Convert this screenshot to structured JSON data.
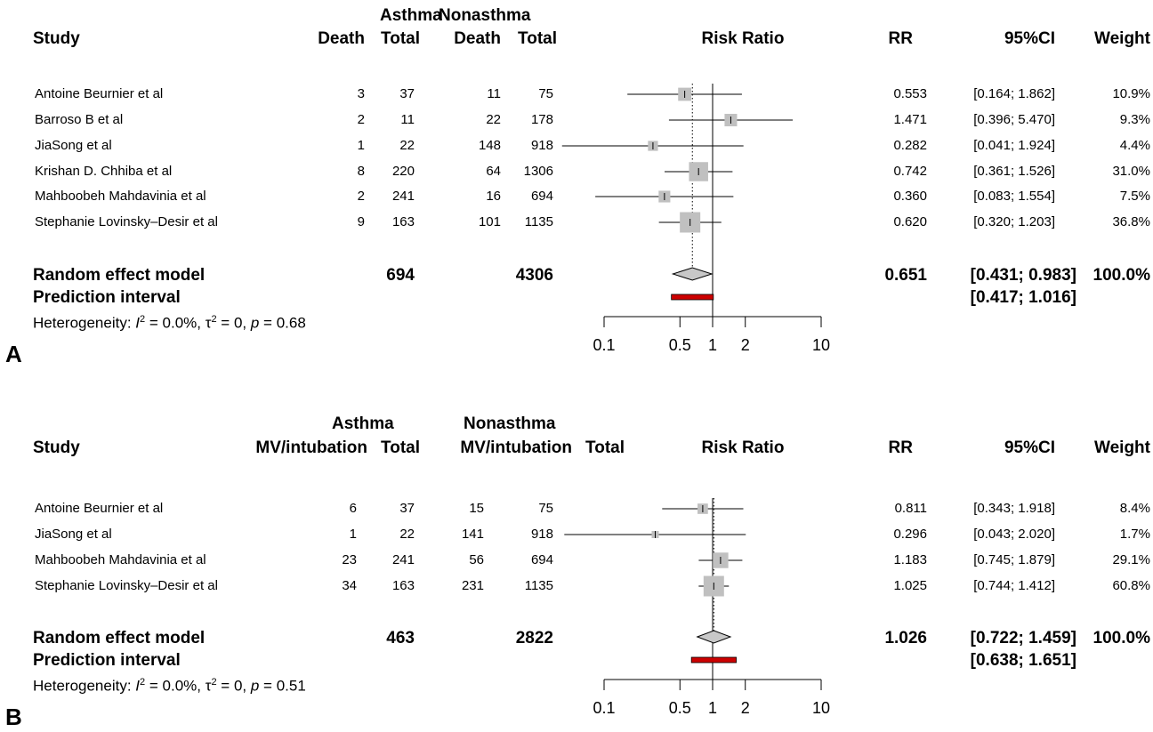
{
  "chart_data": [
    {
      "type": "forest",
      "panel_label": "A",
      "headers": {
        "group1": "Asthma",
        "group2": "Nonasthma",
        "study": "Study",
        "event": "Death",
        "total": "Total",
        "plot": "Risk Ratio",
        "rr": "RR",
        "ci": "95%CI",
        "weight": "Weight"
      },
      "studies": [
        {
          "study": "Antoine Beurnier et al",
          "e1": "3",
          "n1": "37",
          "e2": "11",
          "n2": "75",
          "rr": 0.553,
          "lo": 0.164,
          "hi": 1.862,
          "rr_text": "0.553",
          "ci_text": "[0.164; 1.862]",
          "weight": 10.9,
          "weight_text": "10.9%"
        },
        {
          "study": "Barroso B et al",
          "e1": "2",
          "n1": "11",
          "e2": "22",
          "n2": "178",
          "rr": 1.471,
          "lo": 0.396,
          "hi": 5.47,
          "rr_text": "1.471",
          "ci_text": "[0.396; 5.470]",
          "weight": 9.3,
          "weight_text": "9.3%"
        },
        {
          "study": "JiaSong et al",
          "e1": "1",
          "n1": "22",
          "e2": "148",
          "n2": "918",
          "rr": 0.282,
          "lo": 0.041,
          "hi": 1.924,
          "rr_text": "0.282",
          "ci_text": "[0.041; 1.924]",
          "weight": 4.4,
          "weight_text": "4.4%"
        },
        {
          "study": "Krishan D. Chhiba et al",
          "e1": "8",
          "n1": "220",
          "e2": "64",
          "n2": "1306",
          "rr": 0.742,
          "lo": 0.361,
          "hi": 1.526,
          "rr_text": "0.742",
          "ci_text": "[0.361; 1.526]",
          "weight": 31.0,
          "weight_text": "31.0%"
        },
        {
          "study": "Mahboobeh Mahdavinia et al",
          "e1": "2",
          "n1": "241",
          "e2": "16",
          "n2": "694",
          "rr": 0.36,
          "lo": 0.083,
          "hi": 1.554,
          "rr_text": "0.360",
          "ci_text": "[0.083; 1.554]",
          "weight": 7.5,
          "weight_text": "7.5%"
        },
        {
          "study": "Stephanie Lovinsky–Desir et al",
          "e1": "9",
          "n1": "163",
          "e2": "101",
          "n2": "1135",
          "rr": 0.62,
          "lo": 0.32,
          "hi": 1.203,
          "rr_text": "0.620",
          "ci_text": "[0.320; 1.203]",
          "weight": 36.8,
          "weight_text": "36.8%"
        }
      ],
      "summary": {
        "label": "Random effect model",
        "n1": "694",
        "n2": "4306",
        "rr": 0.651,
        "lo": 0.431,
        "hi": 0.983,
        "rr_text": "0.651",
        "ci_text": "[0.431; 0.983]",
        "weight_text": "100.0%"
      },
      "prediction": {
        "label": "Prediction interval",
        "lo": 0.417,
        "hi": 1.016,
        "ci_text": "[0.417; 1.016]"
      },
      "heterogeneity": {
        "prefix": "Heterogeneity: ",
        "i2_symbol": "I",
        "i2_sup": "2",
        "i2_value": " = 0.0%, ",
        "tau_symbol": "τ",
        "tau_sup": "2",
        "tau_value": " = 0, ",
        "p_symbol": "p",
        "p_value": " = 0.68"
      },
      "x_axis": {
        "scale": "log",
        "ticks": [
          0.1,
          0.5,
          1,
          2,
          10
        ],
        "tick_labels": [
          "0.1",
          "0.5",
          "1",
          "2",
          "10"
        ]
      },
      "colors": {
        "square": "#c0c0c0",
        "prediction": "#cc0000"
      }
    },
    {
      "type": "forest",
      "panel_label": "B",
      "headers": {
        "group1": "Asthma",
        "group2": "Nonasthma",
        "study": "Study",
        "event": "MV/intubation",
        "total": "Total",
        "plot": "Risk Ratio",
        "rr": "RR",
        "ci": "95%CI",
        "weight": "Weight"
      },
      "studies": [
        {
          "study": "Antoine Beurnier et al",
          "e1": "6",
          "n1": "37",
          "e2": "15",
          "n2": "75",
          "rr": 0.811,
          "lo": 0.343,
          "hi": 1.918,
          "rr_text": "0.811",
          "ci_text": "[0.343; 1.918]",
          "weight": 8.4,
          "weight_text": "8.4%"
        },
        {
          "study": "JiaSong et al",
          "e1": "1",
          "n1": "22",
          "e2": "141",
          "n2": "918",
          "rr": 0.296,
          "lo": 0.043,
          "hi": 2.02,
          "rr_text": "0.296",
          "ci_text": "[0.043; 2.020]",
          "weight": 1.7,
          "weight_text": "1.7%"
        },
        {
          "study": "Mahboobeh Mahdavinia et al",
          "e1": "23",
          "n1": "241",
          "e2": "56",
          "n2": "694",
          "rr": 1.183,
          "lo": 0.745,
          "hi": 1.879,
          "rr_text": "1.183",
          "ci_text": "[0.745; 1.879]",
          "weight": 29.1,
          "weight_text": "29.1%"
        },
        {
          "study": "Stephanie Lovinsky–Desir et al",
          "e1": "34",
          "n1": "163",
          "e2": "231",
          "n2": "1135",
          "rr": 1.025,
          "lo": 0.744,
          "hi": 1.412,
          "rr_text": "1.025",
          "ci_text": "[0.744; 1.412]",
          "weight": 60.8,
          "weight_text": "60.8%"
        }
      ],
      "summary": {
        "label": "Random effect model",
        "n1": "463",
        "n2": "2822",
        "rr": 1.026,
        "lo": 0.722,
        "hi": 1.459,
        "rr_text": "1.026",
        "ci_text": "[0.722; 1.459]",
        "weight_text": "100.0%"
      },
      "prediction": {
        "label": "Prediction interval",
        "lo": 0.638,
        "hi": 1.651,
        "ci_text": "[0.638; 1.651]"
      },
      "heterogeneity": {
        "prefix": "Heterogeneity: ",
        "i2_symbol": "I",
        "i2_sup": "2",
        "i2_value": " = 0.0%, ",
        "tau_symbol": "τ",
        "tau_sup": "2",
        "tau_value": " = 0, ",
        "p_symbol": "p",
        "p_value": " = 0.51"
      },
      "x_axis": {
        "scale": "log",
        "ticks": [
          0.1,
          0.5,
          1,
          2,
          10
        ],
        "tick_labels": [
          "0.1",
          "0.5",
          "1",
          "2",
          "10"
        ]
      },
      "colors": {
        "square": "#c0c0c0",
        "prediction": "#cc0000"
      }
    }
  ]
}
